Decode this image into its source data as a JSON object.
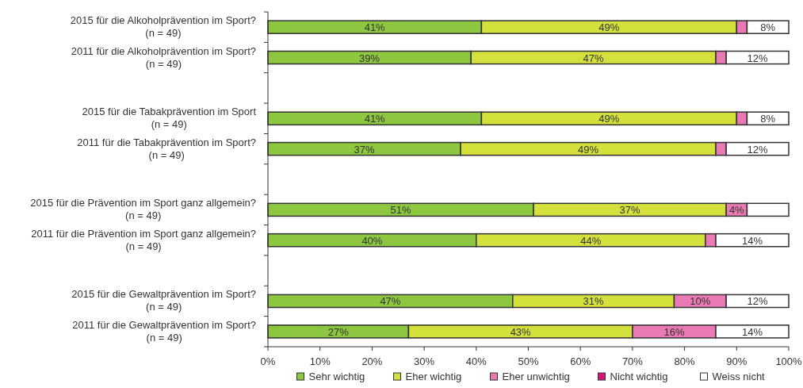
{
  "chart_data": {
    "type": "bar",
    "orientation": "horizontal",
    "stacked": true,
    "categories": [
      "2015 für die Alkoholprävention im Sport?\n(n = 49)",
      "2011 für die Alkoholprävention im Sport?\n(n = 49)",
      null,
      "2015 für die Tabakprävention im Sport\n(n = 49)",
      "2011 für die Tabakprävention im Sport?\n(n = 49)",
      null,
      "2015 für die Prävention im Sport ganz allgemein?\n(n = 49)",
      "2011 für die Prävention im Sport ganz allgemein?\n(n = 49)",
      null,
      "2015 für die Gewaltprävention im Sport?\n(n = 49)",
      "2011 für die Gewaltprävention im Sport?\n(n = 49)"
    ],
    "series": [
      {
        "name": "Sehr wichtig",
        "color": "#8dc63f",
        "values": [
          41,
          39,
          null,
          41,
          37,
          null,
          51,
          40,
          null,
          47,
          27
        ],
        "value_labels": [
          "41%",
          "39%",
          null,
          "41%",
          "37%",
          null,
          "51%",
          "40%",
          null,
          "47%",
          "27%"
        ]
      },
      {
        "name": "Eher wichtig",
        "color": "#d4e03c",
        "values": [
          49,
          47,
          null,
          49,
          49,
          null,
          37,
          44,
          null,
          31,
          43
        ],
        "value_labels": [
          "49%",
          "47%",
          null,
          "49%",
          "49%",
          null,
          "37%",
          "44%",
          null,
          "31%",
          "43%"
        ]
      },
      {
        "name": "Eher unwichtig",
        "color": "#e97ab3",
        "values": [
          2,
          2,
          null,
          2,
          2,
          null,
          4,
          2,
          null,
          10,
          16
        ],
        "value_labels": [
          null,
          null,
          null,
          null,
          null,
          null,
          "4%",
          null,
          null,
          "10%",
          "16%"
        ]
      },
      {
        "name": "Nicht wichtig",
        "color": "#d4157a",
        "values": [
          null,
          null,
          null,
          null,
          null,
          null,
          null,
          null,
          null,
          null,
          null
        ]
      },
      {
        "name": "Weiss nicht",
        "color": "#ffffff",
        "values": [
          8,
          12,
          null,
          8,
          12,
          null,
          8,
          14,
          null,
          12,
          14
        ],
        "value_labels": [
          "8%",
          "12%",
          null,
          "8%",
          "12%",
          null,
          null,
          "14%",
          null,
          "12%",
          "14%"
        ]
      }
    ],
    "xlim": [
      0,
      100
    ],
    "xticks": [
      {
        "value": 0,
        "label": "0%"
      },
      {
        "value": 10,
        "label": "10%"
      },
      {
        "value": 20,
        "label": "20%"
      },
      {
        "value": 30,
        "label": "30%"
      },
      {
        "value": 40,
        "label": "40%"
      },
      {
        "value": 50,
        "label": "50%"
      },
      {
        "value": 60,
        "label": "60%"
      },
      {
        "value": 70,
        "label": "70%"
      },
      {
        "value": 80,
        "label": "80%"
      },
      {
        "value": 90,
        "label": "90%"
      },
      {
        "value": 100,
        "label": "100%"
      }
    ],
    "legend": "bottom",
    "grid": false
  }
}
